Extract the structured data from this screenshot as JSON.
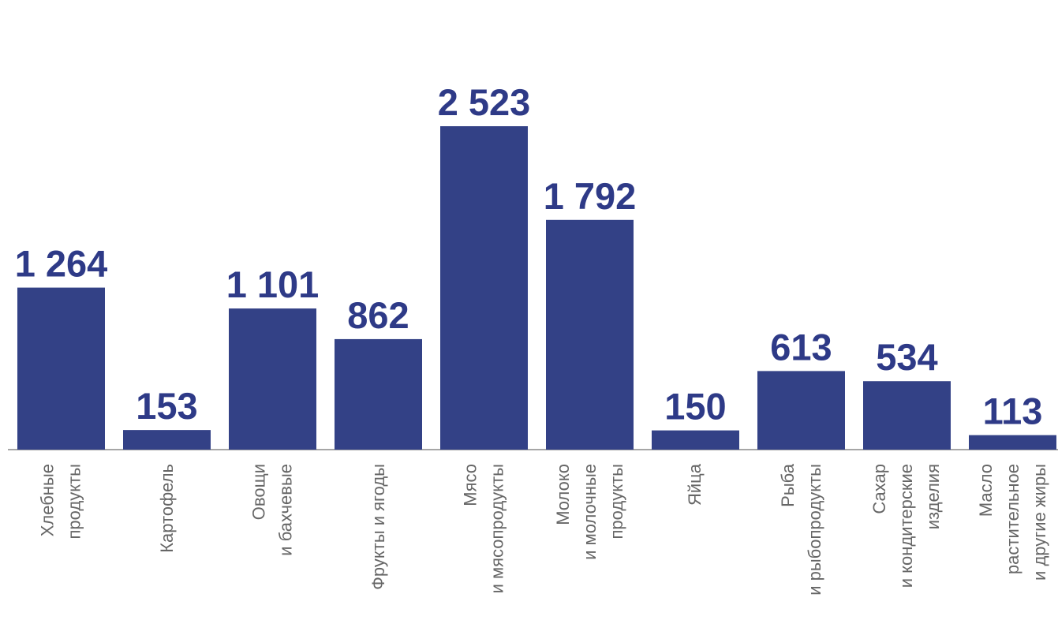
{
  "chart_data": {
    "type": "bar",
    "categories": [
      "Хлебные\nпродукты",
      "Картофель",
      "Овощи\nи бахчевые",
      "Фрукты и ягоды",
      "Мясо\nи мясопродукты",
      "Молоко\nи молочные\nпродукты",
      "Яйца",
      "Рыба\nи рыбопродукты",
      "Сахар\nи кондитерские\nизделия",
      "Масло\nрастительное\nи другие жиры"
    ],
    "values": [
      1264,
      153,
      1101,
      862,
      2523,
      1792,
      150,
      613,
      534,
      113
    ],
    "value_labels": [
      "1 264",
      "153",
      "1 101",
      "862",
      "2 523",
      "1 792",
      "150",
      "613",
      "534",
      "113"
    ],
    "color": "#334186"
  }
}
